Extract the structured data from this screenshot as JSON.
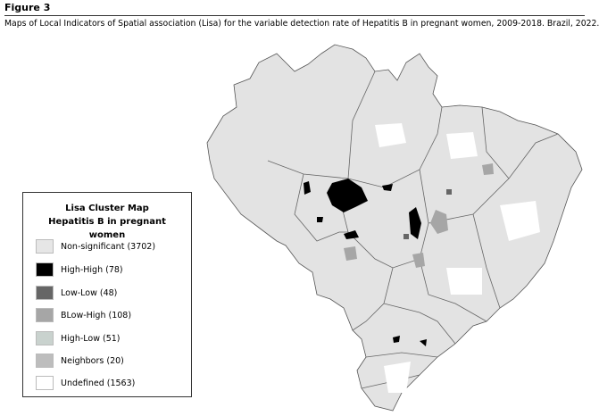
{
  "figure": {
    "label": "Figure 3",
    "caption": "Maps of Local Indicators of Spatial association (Lisa) for the variable detection rate of Hepatitis B in pregnant women, 2009-2018. Brazil, 2022."
  },
  "legend": {
    "title": "Lisa Cluster Map Hepatitis B in pregnant women",
    "entries": [
      {
        "label": "Non-significant (3702)",
        "color": "#e6e6e6"
      },
      {
        "label": "High-High (78)",
        "color": "#000000"
      },
      {
        "label": "Low-Low (48)",
        "color": "#666666"
      },
      {
        "label": "BLow-High (108)",
        "color": "#a6a6a6"
      },
      {
        "label": "High-Low (51)",
        "color": "#c9d2ce"
      },
      {
        "label": "Neighbors (20)",
        "color": "#bdbdbd"
      },
      {
        "label": "Undefined (1563)",
        "color": "#ffffff"
      }
    ]
  }
}
